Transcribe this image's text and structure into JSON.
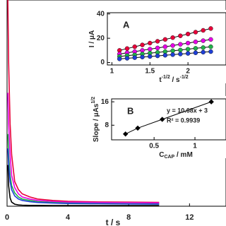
{
  "chart_data": [
    {
      "type": "line",
      "xlabel": "t / s",
      "x": [
        0.05,
        0.1,
        0.2,
        0.3,
        0.5,
        0.75,
        1,
        1.5,
        2,
        3,
        4,
        6,
        8,
        10
      ],
      "series": [
        {
          "color": "#e8003a",
          "values": [
            100,
            70,
            40,
            25,
            12,
            8,
            6,
            4.5,
            3.5,
            2.8,
            2.4,
            2.1,
            2,
            1.9
          ]
        },
        {
          "color": "#e600e6",
          "values": [
            55,
            40,
            25,
            15,
            9,
            6,
            4.5,
            3.5,
            2.8,
            2.3,
            2,
            1.8,
            1.7,
            1.6
          ]
        },
        {
          "color": "#22b04a",
          "values": [
            35,
            25,
            15,
            10,
            6.5,
            4.5,
            3.5,
            2.8,
            2.2,
            1.8,
            1.5,
            1.3,
            1.2,
            1.1
          ]
        },
        {
          "color": "#1f3fd6",
          "values": [
            28,
            20,
            12,
            8,
            5,
            3.5,
            2.8,
            2.2,
            1.8,
            1.5,
            1.3,
            1.2,
            1.1,
            1
          ]
        },
        {
          "color": "#000000",
          "values": [
            20,
            10,
            4,
            2,
            1,
            0.6,
            0.5,
            0.4,
            0.4,
            0.3,
            0.3,
            0.3,
            0.3,
            0.3
          ]
        }
      ],
      "xlim": [
        0,
        14.4
      ],
      "xticks": [
        0,
        4,
        8,
        12
      ],
      "ylim": [
        0,
        100
      ]
    },
    {
      "type": "scatter",
      "label": "A",
      "ylabel": "I / μA",
      "xlabel": [
        "t",
        "-1/2",
        " / s",
        "-1/2"
      ],
      "xlabel_script": "sup",
      "line_color": "#000000",
      "x": [
        1.1,
        1.2,
        1.3,
        1.4,
        1.5,
        1.6,
        1.7,
        1.8,
        1.9,
        2.0,
        2.1,
        2.2,
        2.3
      ],
      "series": [
        {
          "color": "#e8003a",
          "values": [
            10,
            11.5,
            13,
            14.5,
            16,
            17.5,
            19,
            20.5,
            22,
            23.5,
            25,
            26.5,
            28
          ]
        },
        {
          "color": "#e600e6",
          "values": [
            7,
            8,
            9,
            10,
            11,
            12,
            13,
            14,
            15,
            16,
            17,
            18,
            19
          ]
        },
        {
          "color": "#22b04a",
          "values": [
            5,
            5.7,
            6.3,
            7,
            7.7,
            8.3,
            9,
            9.7,
            10.3,
            11,
            11.7,
            12.3,
            13
          ]
        },
        {
          "color": "#1f3fd6",
          "values": [
            3,
            3.5,
            4,
            4.5,
            5,
            5.5,
            6,
            6.5,
            7,
            7.5,
            8,
            8.5,
            9
          ]
        }
      ],
      "xlim": [
        0.94,
        2.5
      ],
      "xticks": [
        1,
        1.5,
        2
      ],
      "ylim": [
        -2,
        41
      ],
      "yticks": [
        0,
        20,
        40
      ]
    },
    {
      "type": "scatter",
      "label": "B",
      "ylabel": "Slope / μAs",
      "ylabel_sup": "1/2",
      "xlabel": [
        "C",
        "CAP",
        " / mM"
      ],
      "xlabel_script": "sub",
      "line_color": "#000000",
      "equation": "y = 10.68x + 3",
      "r2": "R² = 0.9939",
      "x": [
        0.15,
        0.3,
        0.6,
        1.2
      ],
      "series": [
        {
          "color": "#000000",
          "values": [
            5,
            7,
            10,
            16
          ]
        }
      ],
      "xlim": [
        -0.02,
        1.38
      ],
      "xticks": [
        0.5,
        1
      ],
      "ylim": [
        3,
        17
      ],
      "yticks": [
        8,
        16
      ]
    }
  ]
}
